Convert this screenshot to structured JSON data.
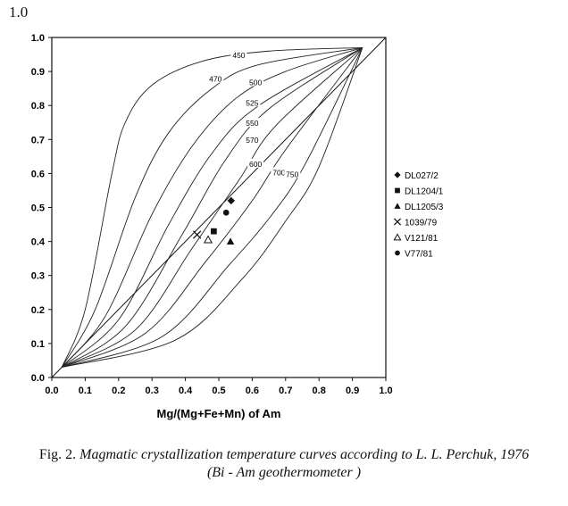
{
  "page_label": "1.0",
  "caption": {
    "fig_prefix": "Fig. 2.",
    "line1_italic": "Magmatic crystallization temperature curves according to L. L. Perchuk, 1976",
    "line2": "(Bi - Am geothermometer )"
  },
  "chart_data": {
    "type": "scatter",
    "title": "",
    "xlabel": "Mg/(Mg+Fe+Mn) of Am",
    "ylabel": "",
    "xlim": [
      0,
      1.0
    ],
    "ylim": [
      0,
      1.0
    ],
    "x_ticks": [
      "0.0",
      "0.1",
      "0.2",
      "0.3",
      "0.4",
      "0.5",
      "0.6",
      "0.7",
      "0.8",
      "0.9",
      "1.0"
    ],
    "y_ticks": [
      "0.0",
      "0.1",
      "0.2",
      "0.3",
      "0.4",
      "0.5",
      "0.6",
      "0.7",
      "0.8",
      "0.9",
      "1.0"
    ],
    "grid": false,
    "legend_position": "right",
    "isotherms": [
      {
        "label": "450",
        "points": [
          [
            0.03,
            0.03
          ],
          [
            0.1,
            0.2
          ],
          [
            0.18,
            0.6
          ],
          [
            0.22,
            0.75
          ],
          [
            0.3,
            0.86
          ],
          [
            0.45,
            0.93
          ],
          [
            0.65,
            0.96
          ],
          [
            0.93,
            0.97
          ]
        ],
        "label_at": [
          0.56,
          0.945
        ]
      },
      {
        "label": "470",
        "points": [
          [
            0.03,
            0.03
          ],
          [
            0.13,
            0.2
          ],
          [
            0.25,
            0.53
          ],
          [
            0.35,
            0.72
          ],
          [
            0.48,
            0.85
          ],
          [
            0.62,
            0.92
          ],
          [
            0.93,
            0.97
          ]
        ],
        "label_at": [
          0.49,
          0.875
        ]
      },
      {
        "label": "500",
        "points": [
          [
            0.03,
            0.03
          ],
          [
            0.16,
            0.18
          ],
          [
            0.3,
            0.48
          ],
          [
            0.42,
            0.68
          ],
          [
            0.55,
            0.82
          ],
          [
            0.7,
            0.9
          ],
          [
            0.93,
            0.97
          ]
        ],
        "label_at": [
          0.61,
          0.865
        ]
      },
      {
        "label": "525",
        "points": [
          [
            0.03,
            0.03
          ],
          [
            0.2,
            0.17
          ],
          [
            0.35,
            0.45
          ],
          [
            0.48,
            0.66
          ],
          [
            0.62,
            0.8
          ],
          [
            0.93,
            0.97
          ]
        ],
        "label_at": [
          0.6,
          0.805
        ]
      },
      {
        "label": "550",
        "points": [
          [
            0.03,
            0.03
          ],
          [
            0.22,
            0.15
          ],
          [
            0.39,
            0.42
          ],
          [
            0.52,
            0.64
          ],
          [
            0.65,
            0.79
          ],
          [
            0.93,
            0.97
          ]
        ],
        "label_at": [
          0.6,
          0.745
        ]
      },
      {
        "label": "570",
        "points": [
          [
            0.03,
            0.03
          ],
          [
            0.25,
            0.14
          ],
          [
            0.42,
            0.38
          ],
          [
            0.56,
            0.58
          ],
          [
            0.67,
            0.74
          ],
          [
            0.93,
            0.97
          ]
        ],
        "label_at": [
          0.6,
          0.695
        ]
      },
      {
        "label": "600",
        "points": [
          [
            0.03,
            0.03
          ],
          [
            0.28,
            0.13
          ],
          [
            0.46,
            0.34
          ],
          [
            0.6,
            0.52
          ],
          [
            0.7,
            0.67
          ],
          [
            0.93,
            0.97
          ]
        ],
        "label_at": [
          0.61,
          0.625
        ]
      },
      {
        "label": "700",
        "points": [
          [
            0.03,
            0.03
          ],
          [
            0.33,
            0.12
          ],
          [
            0.53,
            0.33
          ],
          [
            0.66,
            0.48
          ],
          [
            0.76,
            0.63
          ],
          [
            0.93,
            0.97
          ]
        ],
        "label_at": [
          0.68,
          0.6
        ]
      },
      {
        "label": "750",
        "points": [
          [
            0.03,
            0.03
          ],
          [
            0.37,
            0.11
          ],
          [
            0.57,
            0.29
          ],
          [
            0.7,
            0.46
          ],
          [
            0.8,
            0.62
          ],
          [
            0.93,
            0.97
          ]
        ],
        "label_at": [
          0.72,
          0.595
        ]
      }
    ],
    "diagonal": [
      [
        0.0,
        0.0
      ],
      [
        1.0,
        1.0
      ]
    ],
    "series": [
      {
        "name": "DL027/2",
        "marker": "diamond-filled",
        "x": [
          0.537
        ],
        "y": [
          0.52
        ]
      },
      {
        "name": "DL1204/1",
        "marker": "square-filled",
        "x": [
          0.485
        ],
        "y": [
          0.43
        ]
      },
      {
        "name": "DL1205/3",
        "marker": "triangle-filled",
        "x": [
          0.535
        ],
        "y": [
          0.4
        ]
      },
      {
        "name": "1039/79",
        "marker": "cross",
        "x": [
          0.435
        ],
        "y": [
          0.42
        ]
      },
      {
        "name": "V121/81",
        "marker": "triangle-open",
        "x": [
          0.468
        ],
        "y": [
          0.405
        ]
      },
      {
        "name": "V77/81",
        "marker": "circle-filled",
        "x": [
          0.522
        ],
        "y": [
          0.485
        ]
      }
    ]
  }
}
